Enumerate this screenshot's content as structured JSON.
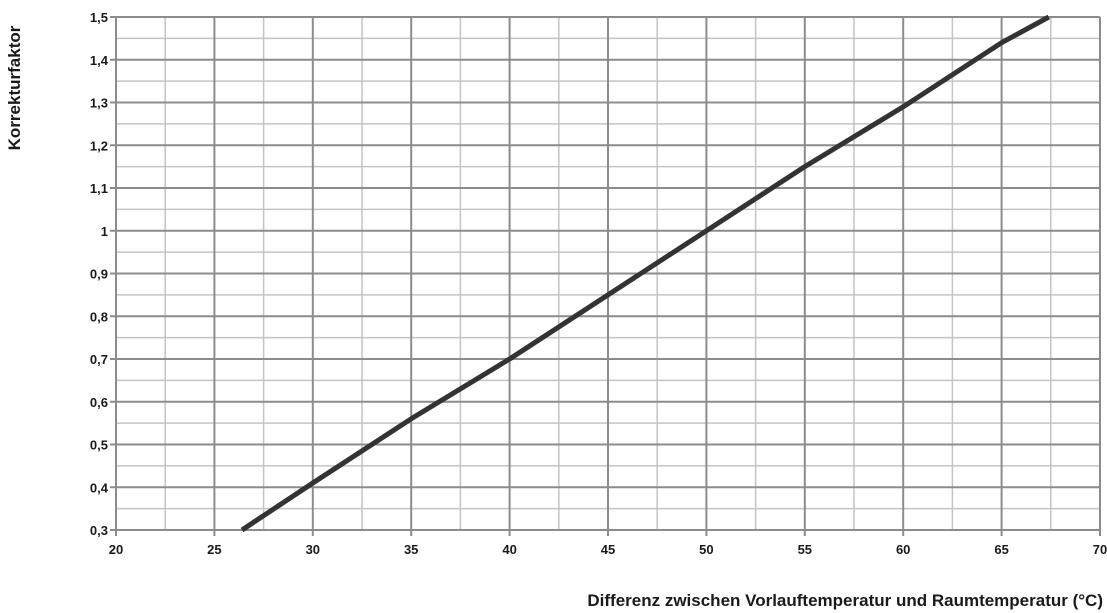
{
  "chart_data": {
    "type": "line",
    "title": "",
    "xlabel": "Differenz zwischen Vorlauftemperatur und Raumtemperatur (°C)",
    "ylabel": "Korrekturfaktor",
    "xlim": [
      20,
      70
    ],
    "ylim": [
      0.3,
      1.5
    ],
    "x_ticks": [
      "20",
      "25",
      "30",
      "35",
      "40",
      "45",
      "50",
      "55",
      "60",
      "65",
      "70"
    ],
    "y_ticks": [
      "0,3",
      "0,4",
      "0,5",
      "0,6",
      "0,7",
      "0,8",
      "0,9",
      "1",
      "1,1",
      "1,2",
      "1,3",
      "1,4",
      "1,5"
    ],
    "grid": true,
    "legend": "none",
    "series": [
      {
        "x": [
          26.4,
          30,
          35,
          40,
          45,
          50,
          55,
          60,
          65,
          67.4
        ],
        "y": [
          0.3,
          0.41,
          0.56,
          0.7,
          0.85,
          1.0,
          1.15,
          1.29,
          1.44,
          1.5
        ],
        "color": "#333333"
      }
    ],
    "colors": {
      "major_grid": "#8c8c8c",
      "minor_grid": "#c4c4c4",
      "line": "#333333"
    }
  }
}
